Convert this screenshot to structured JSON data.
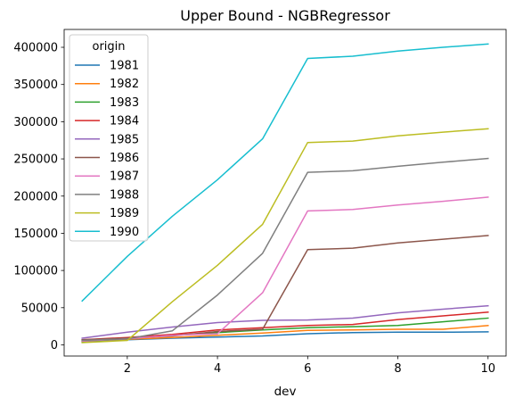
{
  "chart_data": {
    "type": "line",
    "title": "Upper Bound - NGBRegressor",
    "xlabel": "dev",
    "ylabel": "",
    "xlim": [
      0.6,
      10.4
    ],
    "ylim": [
      -15000,
      424000
    ],
    "xticks": [
      2,
      4,
      6,
      8,
      10
    ],
    "yticks": [
      0,
      50000,
      100000,
      150000,
      200000,
      250000,
      300000,
      350000,
      400000
    ],
    "grid": false,
    "legend": {
      "title": "origin",
      "position": "upper-left"
    },
    "x": [
      1,
      2,
      3,
      4,
      5,
      6,
      7,
      8,
      9,
      10
    ],
    "series": [
      {
        "name": "1981",
        "color": "#1f77b4",
        "values": [
          5000,
          7000,
          9000,
          10500,
          12000,
          15000,
          16500,
          17000,
          17000,
          17500
        ]
      },
      {
        "name": "1982",
        "color": "#ff7f0e",
        "values": [
          5000,
          7500,
          10000,
          13000,
          16000,
          19500,
          20000,
          21000,
          21000,
          26000
        ]
      },
      {
        "name": "1983",
        "color": "#2ca02c",
        "values": [
          4000,
          8000,
          13000,
          16500,
          20000,
          23000,
          24500,
          26000,
          31000,
          36000
        ]
      },
      {
        "name": "1984",
        "color": "#d62728",
        "values": [
          7000,
          10000,
          14000,
          20000,
          23000,
          26000,
          27500,
          34000,
          39000,
          44000
        ]
      },
      {
        "name": "1985",
        "color": "#9467bd",
        "values": [
          9000,
          17000,
          24000,
          30000,
          33000,
          33500,
          36000,
          43000,
          48000,
          52500
        ]
      },
      {
        "name": "1986",
        "color": "#8c564b",
        "values": [
          7000,
          9000,
          12000,
          18000,
          21000,
          128000,
          130000,
          137000,
          142000,
          147000
        ]
      },
      {
        "name": "1987",
        "color": "#e377c2",
        "values": [
          5000,
          8000,
          13000,
          15000,
          70000,
          180000,
          182000,
          188000,
          193000,
          198500
        ]
      },
      {
        "name": "1988",
        "color": "#7f7f7f",
        "values": [
          6000,
          8000,
          19000,
          67000,
          123000,
          232000,
          234000,
          240000,
          245500,
          250500
        ]
      },
      {
        "name": "1989",
        "color": "#bcbd22",
        "values": [
          3000,
          6000,
          58000,
          107000,
          162000,
          272000,
          274000,
          281000,
          286000,
          290500
        ]
      },
      {
        "name": "1990",
        "color": "#17becf",
        "values": [
          59000,
          119000,
          173000,
          222000,
          277000,
          385000,
          388000,
          395000,
          400000,
          404500
        ]
      }
    ]
  }
}
